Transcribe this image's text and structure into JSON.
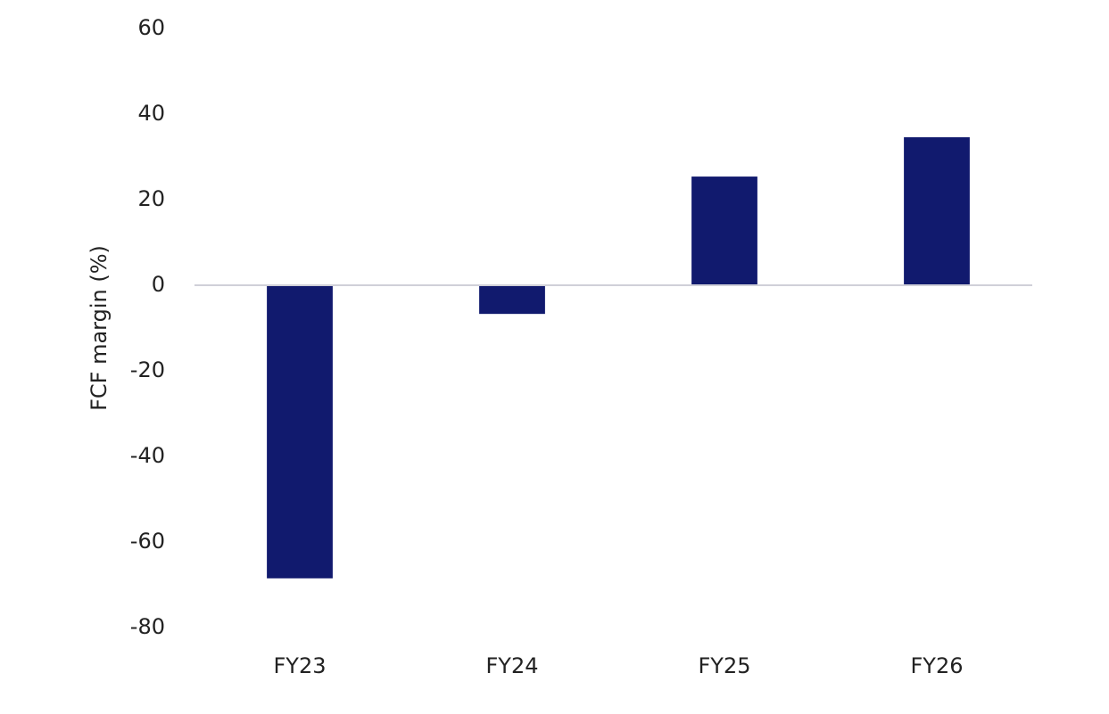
{
  "chart_data": {
    "type": "bar",
    "y_label": "FCF margin (%)",
    "categories": [
      "FY23",
      "FY24",
      "FY25",
      "FY26"
    ],
    "values": [
      -68.5,
      -6.7,
      25.4,
      34.6
    ],
    "color": "#111a6e",
    "ylim": [
      -80,
      60
    ],
    "yticks": [
      -80,
      -60,
      -40,
      -20,
      0,
      20,
      40,
      60
    ],
    "grid": false
  }
}
